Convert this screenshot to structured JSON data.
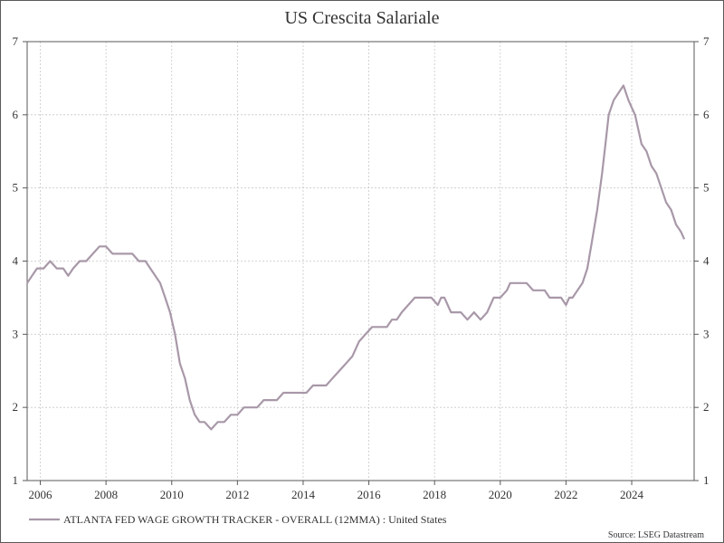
{
  "chart_data": {
    "type": "line",
    "title": "US Crescita Salariale",
    "source": "Source: LSEG Datastream",
    "xlim": [
      2005.6,
      2025.9
    ],
    "ylim": [
      1,
      7
    ],
    "x_ticks": [
      2006,
      2008,
      2010,
      2012,
      2014,
      2016,
      2018,
      2020,
      2022,
      2024
    ],
    "y_ticks": [
      1,
      2,
      3,
      4,
      5,
      6,
      7
    ],
    "grid": true,
    "legend_position": "bottom-left",
    "colors": {
      "series": "#a898a8",
      "frame": "#5a5a5a",
      "grid": "#c8c8c8"
    },
    "series": [
      {
        "name": "ATLANTA FED WAGE GROWTH TRACKER - OVERALL (12MMA) : United States",
        "x": [
          2005.6,
          2005.75,
          2005.9,
          2006.1,
          2006.3,
          2006.5,
          2006.7,
          2006.85,
          2007.0,
          2007.2,
          2007.4,
          2007.6,
          2007.8,
          2008.0,
          2008.2,
          2008.4,
          2008.6,
          2008.8,
          2009.0,
          2009.1,
          2009.2,
          2009.35,
          2009.5,
          2009.65,
          2009.8,
          2009.95,
          2010.1,
          2010.25,
          2010.4,
          2010.55,
          2010.7,
          2010.85,
          2011.0,
          2011.2,
          2011.4,
          2011.6,
          2011.8,
          2012.0,
          2012.2,
          2012.4,
          2012.6,
          2012.8,
          2013.0,
          2013.2,
          2013.4,
          2013.6,
          2013.7,
          2013.8,
          2013.9,
          2014.1,
          2014.3,
          2014.5,
          2014.7,
          2014.9,
          2015.1,
          2015.3,
          2015.5,
          2015.7,
          2015.9,
          2016.1,
          2016.3,
          2016.45,
          2016.55,
          2016.7,
          2016.85,
          2017.0,
          2017.2,
          2017.4,
          2017.55,
          2017.7,
          2017.9,
          2018.1,
          2018.2,
          2018.3,
          2018.4,
          2018.5,
          2018.6,
          2018.8,
          2019.0,
          2019.2,
          2019.4,
          2019.6,
          2019.8,
          2019.9,
          2020.0,
          2020.2,
          2020.3,
          2020.4,
          2020.6,
          2020.8,
          2021.0,
          2021.2,
          2021.35,
          2021.5,
          2021.6,
          2021.7,
          2021.85,
          2022.0,
          2022.1,
          2022.2,
          2022.35,
          2022.5,
          2022.65,
          2022.8,
          2022.95,
          2023.1,
          2023.2,
          2023.3,
          2023.45,
          2023.6,
          2023.75,
          2023.9,
          2024.0,
          2024.1,
          2024.2,
          2024.3,
          2024.45,
          2024.6,
          2024.75,
          2024.9,
          2025.05,
          2025.2,
          2025.35,
          2025.5,
          2025.6
        ],
        "values": [
          3.7,
          3.8,
          3.9,
          3.9,
          4.0,
          3.9,
          3.9,
          3.8,
          3.9,
          4.0,
          4.0,
          4.1,
          4.2,
          4.2,
          4.1,
          4.1,
          4.1,
          4.1,
          4.0,
          4.0,
          4.0,
          3.9,
          3.8,
          3.7,
          3.5,
          3.3,
          3.0,
          2.6,
          2.4,
          2.1,
          1.9,
          1.8,
          1.8,
          1.7,
          1.8,
          1.8,
          1.9,
          1.9,
          2.0,
          2.0,
          2.0,
          2.1,
          2.1,
          2.1,
          2.2,
          2.2,
          2.2,
          2.2,
          2.2,
          2.2,
          2.3,
          2.3,
          2.3,
          2.4,
          2.5,
          2.6,
          2.7,
          2.9,
          3.0,
          3.1,
          3.1,
          3.1,
          3.1,
          3.2,
          3.2,
          3.3,
          3.4,
          3.5,
          3.5,
          3.5,
          3.5,
          3.4,
          3.5,
          3.5,
          3.4,
          3.3,
          3.3,
          3.3,
          3.2,
          3.3,
          3.2,
          3.3,
          3.5,
          3.5,
          3.5,
          3.6,
          3.7,
          3.7,
          3.7,
          3.7,
          3.6,
          3.6,
          3.6,
          3.5,
          3.5,
          3.5,
          3.5,
          3.4,
          3.5,
          3.5,
          3.6,
          3.7,
          3.9,
          4.3,
          4.7,
          5.2,
          5.6,
          6.0,
          6.2,
          6.3,
          6.4,
          6.2,
          6.1,
          6.0,
          5.8,
          5.6,
          5.5,
          5.3,
          5.2,
          5.0,
          4.8,
          4.7,
          4.5,
          4.4,
          4.3
        ]
      }
    ]
  }
}
